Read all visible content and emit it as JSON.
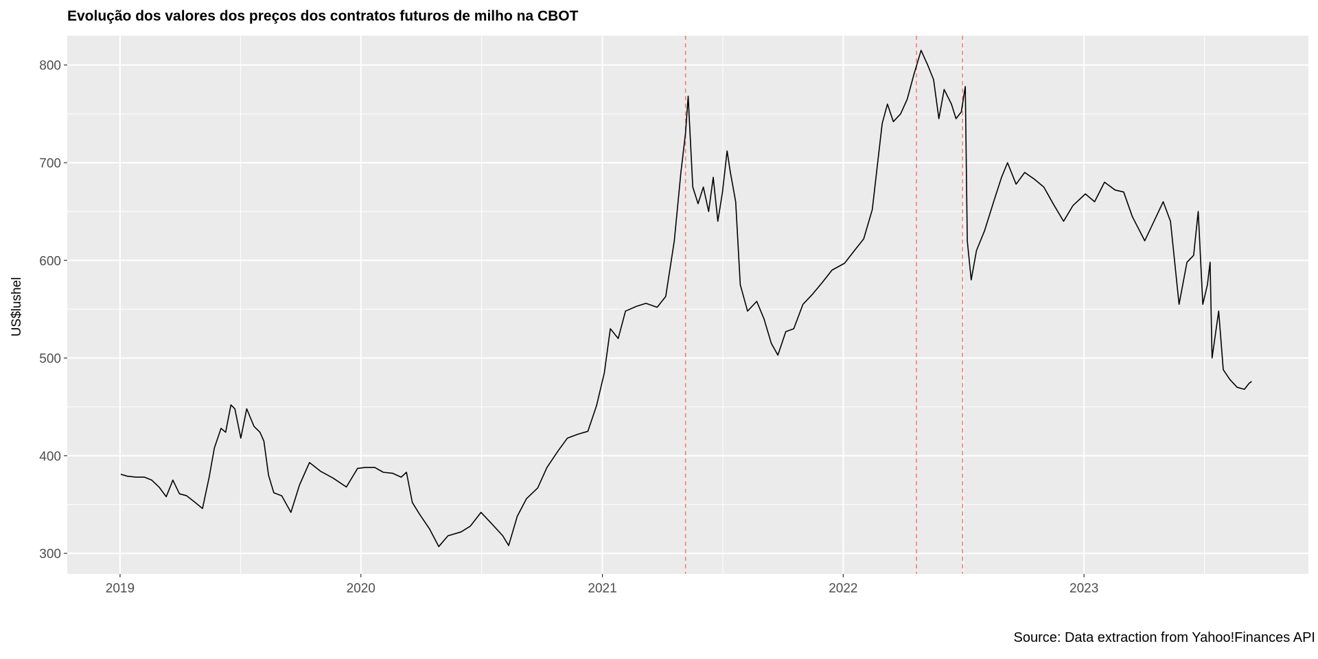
{
  "chart_data": {
    "type": "line",
    "title": "Evolução dos valores dos preços dos contratos futuros de milho na CBOT",
    "xlabel": "",
    "ylabel": "US$lushel",
    "caption": "Source: Data extraction from Yahoo!Finances API",
    "x_ticks": [
      "2019",
      "2020",
      "2021",
      "2022",
      "2023"
    ],
    "y_ticks": [
      300,
      400,
      500,
      600,
      700,
      800
    ],
    "xlim": [
      "2018-10-13",
      "2023-12-07"
    ],
    "ylim": [
      279,
      830
    ],
    "grid": true,
    "legend": "none",
    "line_color": "#000000",
    "vlines": {
      "color": "#F8766D",
      "style": "dashed",
      "dates": [
        "2021-05-07",
        "2022-04-22",
        "2022-07-01"
      ]
    },
    "series": [
      {
        "points": [
          [
            "2019-01-02",
            381
          ],
          [
            "2019-01-12",
            379
          ],
          [
            "2019-01-25",
            378
          ],
          [
            "2019-02-07",
            378
          ],
          [
            "2019-02-18",
            375
          ],
          [
            "2019-03-01",
            368
          ],
          [
            "2019-03-12",
            358
          ],
          [
            "2019-03-22",
            375
          ],
          [
            "2019-04-01",
            361
          ],
          [
            "2019-04-12",
            359
          ],
          [
            "2019-04-25",
            352
          ],
          [
            "2019-05-06",
            346
          ],
          [
            "2019-05-16",
            378
          ],
          [
            "2019-05-24",
            408
          ],
          [
            "2019-06-03",
            428
          ],
          [
            "2019-06-10",
            424
          ],
          [
            "2019-06-18",
            452
          ],
          [
            "2019-06-24",
            448
          ],
          [
            "2019-07-03",
            418
          ],
          [
            "2019-07-12",
            448
          ],
          [
            "2019-07-23",
            430
          ],
          [
            "2019-08-01",
            424
          ],
          [
            "2019-08-07",
            415
          ],
          [
            "2019-08-14",
            380
          ],
          [
            "2019-08-22",
            362
          ],
          [
            "2019-09-03",
            359
          ],
          [
            "2019-09-17",
            342
          ],
          [
            "2019-09-30",
            370
          ],
          [
            "2019-10-15",
            393
          ],
          [
            "2019-11-01",
            384
          ],
          [
            "2019-11-20",
            377
          ],
          [
            "2019-12-10",
            368
          ],
          [
            "2019-12-27",
            387
          ],
          [
            "2020-01-08",
            388
          ],
          [
            "2020-01-22",
            388
          ],
          [
            "2020-02-04",
            383
          ],
          [
            "2020-02-18",
            382
          ],
          [
            "2020-03-02",
            378
          ],
          [
            "2020-03-10",
            383
          ],
          [
            "2020-03-19",
            352
          ],
          [
            "2020-03-30",
            340
          ],
          [
            "2020-04-14",
            325
          ],
          [
            "2020-04-28",
            307
          ],
          [
            "2020-05-12",
            318
          ],
          [
            "2020-06-01",
            322
          ],
          [
            "2020-06-15",
            328
          ],
          [
            "2020-07-01",
            342
          ],
          [
            "2020-07-15",
            332
          ],
          [
            "2020-08-03",
            318
          ],
          [
            "2020-08-12",
            308
          ],
          [
            "2020-08-25",
            338
          ],
          [
            "2020-09-08",
            356
          ],
          [
            "2020-09-25",
            367
          ],
          [
            "2020-10-09",
            388
          ],
          [
            "2020-10-26",
            405
          ],
          [
            "2020-11-09",
            418
          ],
          [
            "2020-11-25",
            422
          ],
          [
            "2020-12-10",
            425
          ],
          [
            "2020-12-23",
            451
          ],
          [
            "2021-01-04",
            485
          ],
          [
            "2021-01-13",
            530
          ],
          [
            "2021-01-25",
            520
          ],
          [
            "2021-02-05",
            548
          ],
          [
            "2021-02-22",
            553
          ],
          [
            "2021-03-08",
            556
          ],
          [
            "2021-03-25",
            552
          ],
          [
            "2021-04-07",
            563
          ],
          [
            "2021-04-20",
            620
          ],
          [
            "2021-04-30",
            690
          ],
          [
            "2021-05-07",
            730
          ],
          [
            "2021-05-11",
            768
          ],
          [
            "2021-05-18",
            675
          ],
          [
            "2021-05-26",
            658
          ],
          [
            "2021-06-03",
            675
          ],
          [
            "2021-06-11",
            650
          ],
          [
            "2021-06-18",
            685
          ],
          [
            "2021-06-25",
            640
          ],
          [
            "2021-07-02",
            670
          ],
          [
            "2021-07-09",
            712
          ],
          [
            "2021-07-14",
            690
          ],
          [
            "2021-07-22",
            660
          ],
          [
            "2021-07-29",
            575
          ],
          [
            "2021-08-09",
            548
          ],
          [
            "2021-08-23",
            558
          ],
          [
            "2021-09-03",
            540
          ],
          [
            "2021-09-14",
            515
          ],
          [
            "2021-09-24",
            503
          ],
          [
            "2021-10-06",
            527
          ],
          [
            "2021-10-18",
            530
          ],
          [
            "2021-11-01",
            555
          ],
          [
            "2021-11-15",
            565
          ],
          [
            "2021-12-01",
            578
          ],
          [
            "2021-12-15",
            590
          ],
          [
            "2022-01-03",
            597
          ],
          [
            "2022-01-18",
            610
          ],
          [
            "2022-02-01",
            622
          ],
          [
            "2022-02-14",
            652
          ],
          [
            "2022-03-01",
            740
          ],
          [
            "2022-03-09",
            760
          ],
          [
            "2022-03-18",
            742
          ],
          [
            "2022-03-29",
            750
          ],
          [
            "2022-04-08",
            765
          ],
          [
            "2022-04-18",
            790
          ],
          [
            "2022-04-29",
            815
          ],
          [
            "2022-05-09",
            800
          ],
          [
            "2022-05-18",
            785
          ],
          [
            "2022-05-26",
            745
          ],
          [
            "2022-06-03",
            775
          ],
          [
            "2022-06-14",
            760
          ],
          [
            "2022-06-21",
            745
          ],
          [
            "2022-06-29",
            752
          ],
          [
            "2022-07-05",
            778
          ],
          [
            "2022-07-08",
            620
          ],
          [
            "2022-07-14",
            580
          ],
          [
            "2022-07-22",
            610
          ],
          [
            "2022-08-03",
            630
          ],
          [
            "2022-08-17",
            660
          ],
          [
            "2022-08-29",
            685
          ],
          [
            "2022-09-07",
            700
          ],
          [
            "2022-09-20",
            678
          ],
          [
            "2022-10-03",
            690
          ],
          [
            "2022-10-18",
            683
          ],
          [
            "2022-11-01",
            675
          ],
          [
            "2022-11-16",
            657
          ],
          [
            "2022-12-01",
            640
          ],
          [
            "2022-12-15",
            656
          ],
          [
            "2023-01-03",
            668
          ],
          [
            "2023-01-17",
            660
          ],
          [
            "2023-02-01",
            680
          ],
          [
            "2023-02-17",
            672
          ],
          [
            "2023-03-02",
            670
          ],
          [
            "2023-03-15",
            645
          ],
          [
            "2023-04-03",
            620
          ],
          [
            "2023-04-17",
            640
          ],
          [
            "2023-05-01",
            660
          ],
          [
            "2023-05-12",
            640
          ],
          [
            "2023-05-25",
            555
          ],
          [
            "2023-06-06",
            598
          ],
          [
            "2023-06-16",
            605
          ],
          [
            "2023-06-23",
            650
          ],
          [
            "2023-06-30",
            555
          ],
          [
            "2023-07-07",
            575
          ],
          [
            "2023-07-11",
            598
          ],
          [
            "2023-07-14",
            500
          ],
          [
            "2023-07-24",
            548
          ],
          [
            "2023-07-31",
            488
          ],
          [
            "2023-08-10",
            478
          ],
          [
            "2023-08-21",
            470
          ],
          [
            "2023-09-01",
            468
          ],
          [
            "2023-09-08",
            474
          ],
          [
            "2023-09-12",
            476
          ]
        ]
      }
    ]
  }
}
